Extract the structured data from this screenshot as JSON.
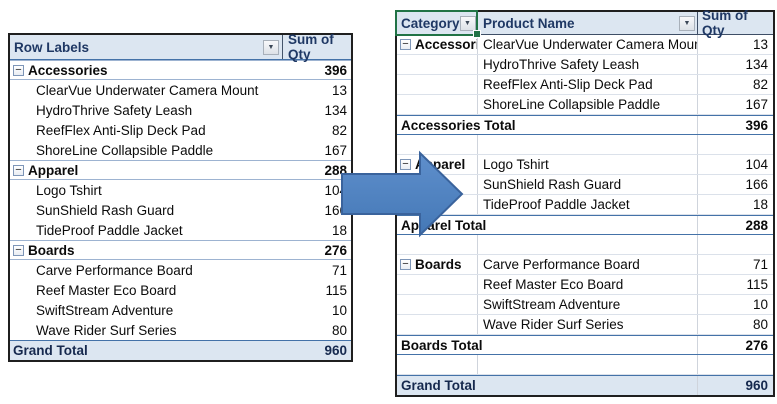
{
  "colors": {
    "header_fill": "#DCE6F1",
    "grand_total_fill": "#DCE6F1",
    "accent_border": "#4472A8",
    "light_border": "#DBE1EA",
    "divider": "#CFD4DC",
    "outer_border": "#1F1F1F",
    "header_text": "#1F3864",
    "selection_green": "#217346",
    "arrow_fill": "#4F81BD",
    "arrow_stroke": "#3A639C"
  },
  "icons": {
    "dropdown_glyph": "▼",
    "collapse_glyph": "−"
  },
  "left_table": {
    "header": {
      "row_labels": "Row Labels",
      "sum_of_qty": "Sum of Qty"
    },
    "rows": [
      {
        "type": "group",
        "label": "Accessories",
        "value": "396"
      },
      {
        "type": "item",
        "label": "ClearVue Underwater Camera Mount",
        "value": "13"
      },
      {
        "type": "item",
        "label": "HydroThrive Safety Leash",
        "value": "134"
      },
      {
        "type": "item",
        "label": "ReefFlex Anti-Slip Deck Pad",
        "value": "82"
      },
      {
        "type": "item",
        "label": "ShoreLine Collapsible Paddle",
        "value": "167"
      },
      {
        "type": "group",
        "label": "Apparel",
        "value": "288"
      },
      {
        "type": "item",
        "label": "Logo Tshirt",
        "value": "104"
      },
      {
        "type": "item",
        "label": "SunShield Rash Guard",
        "value": "166"
      },
      {
        "type": "item",
        "label": "TideProof Paddle Jacket",
        "value": "18"
      },
      {
        "type": "group",
        "label": "Boards",
        "value": "276"
      },
      {
        "type": "item",
        "label": "Carve Performance Board",
        "value": "71"
      },
      {
        "type": "item",
        "label": "Reef Master Eco Board",
        "value": "115"
      },
      {
        "type": "item",
        "label": "SwiftStream Adventure",
        "value": "10"
      },
      {
        "type": "item",
        "label": "Wave Rider Surf Series",
        "value": "80"
      },
      {
        "type": "grand",
        "label": "Grand Total",
        "value": "960"
      }
    ]
  },
  "right_table": {
    "header": {
      "category": "Category",
      "product": "Product Name",
      "qty": "Sum of Qty"
    },
    "rows": [
      {
        "type": "item",
        "category": "Accessories",
        "product": "ClearVue Underwater Camera Mount",
        "value": "13"
      },
      {
        "type": "item",
        "category": "",
        "product": "HydroThrive Safety Leash",
        "value": "134"
      },
      {
        "type": "item",
        "category": "",
        "product": "ReefFlex Anti-Slip Deck Pad",
        "value": "82"
      },
      {
        "type": "item",
        "category": "",
        "product": "ShoreLine Collapsible Paddle",
        "value": "167"
      },
      {
        "type": "total",
        "label": "Accessories Total",
        "value": "396"
      },
      {
        "type": "blank",
        "category": "",
        "product": "",
        "value": ""
      },
      {
        "type": "item",
        "category": "Apparel",
        "product": "Logo Tshirt",
        "value": "104"
      },
      {
        "type": "item",
        "category": "",
        "product": "SunShield Rash Guard",
        "value": "166"
      },
      {
        "type": "item",
        "category": "",
        "product": "TideProof Paddle Jacket",
        "value": "18"
      },
      {
        "type": "total",
        "label": "Apparel Total",
        "value": "288"
      },
      {
        "type": "blank",
        "category": "",
        "product": "",
        "value": ""
      },
      {
        "type": "item",
        "category": "Boards",
        "product": "Carve Performance Board",
        "value": "71"
      },
      {
        "type": "item",
        "category": "",
        "product": "Reef Master Eco Board",
        "value": "115"
      },
      {
        "type": "item",
        "category": "",
        "product": "SwiftStream Adventure",
        "value": "10"
      },
      {
        "type": "item",
        "category": "",
        "product": "Wave Rider Surf Series",
        "value": "80"
      },
      {
        "type": "total",
        "label": "Boards Total",
        "value": "276"
      },
      {
        "type": "blank",
        "category": "",
        "product": "",
        "value": ""
      },
      {
        "type": "grand",
        "label": "Grand Total",
        "value": "960"
      }
    ]
  }
}
